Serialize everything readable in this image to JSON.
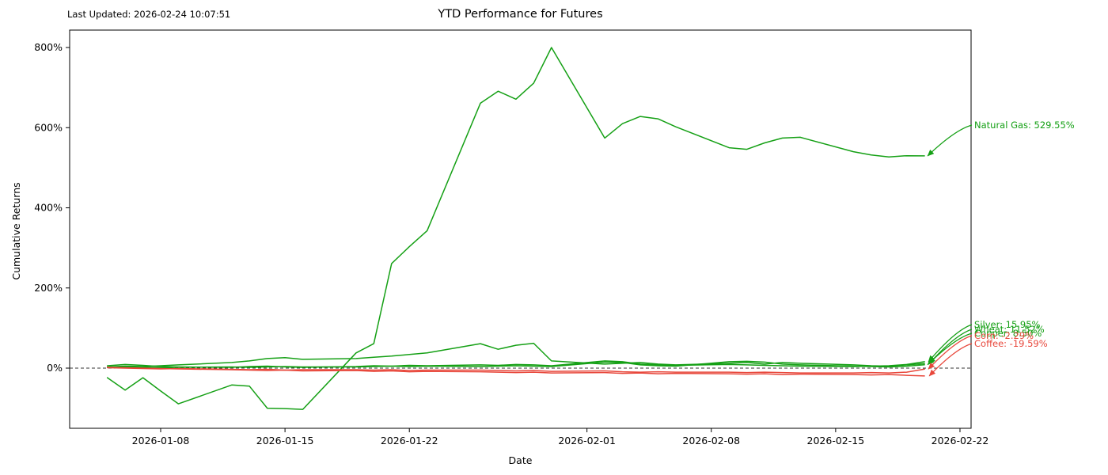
{
  "header": {
    "last_updated": "Last Updated: 2026-02-24 10:07:51"
  },
  "colors": {
    "positive": "#15a015",
    "negative": "#e8473b",
    "axis": "#000000",
    "zero_line": "#333333"
  },
  "chart_data": {
    "type": "line",
    "title": "YTD Performance for Futures",
    "xlabel": "Date",
    "ylabel": "Cumulative Returns",
    "ylim": [
      -150,
      845
    ],
    "grid": false,
    "zero_line_dashed": true,
    "legend_position": "line-end-annotations",
    "yticks": [
      {
        "label": "800%",
        "value": 800
      },
      {
        "label": "600%",
        "value": 600
      },
      {
        "label": "400%",
        "value": 400
      },
      {
        "label": "200%",
        "value": 200
      },
      {
        "label": "0%",
        "value": 0
      }
    ],
    "xticks": [
      "2026-01-08",
      "2026-01-15",
      "2026-01-22",
      "2026-02-01",
      "2026-02-08",
      "2026-02-15",
      "2026-02-22"
    ],
    "x": [
      "2026-01-05",
      "2026-01-06",
      "2026-01-07",
      "2026-01-08",
      "2026-01-09",
      "2026-01-12",
      "2026-01-13",
      "2026-01-14",
      "2026-01-15",
      "2026-01-16",
      "2026-01-19",
      "2026-01-20",
      "2026-01-21",
      "2026-01-22",
      "2026-01-23",
      "2026-01-26",
      "2026-01-27",
      "2026-01-28",
      "2026-01-29",
      "2026-01-30",
      "2026-02-02",
      "2026-02-03",
      "2026-02-04",
      "2026-02-05",
      "2026-02-06",
      "2026-02-09",
      "2026-02-10",
      "2026-02-11",
      "2026-02-12",
      "2026-02-13",
      "2026-02-16",
      "2026-02-17",
      "2026-02-18",
      "2026-02-19",
      "2026-02-20"
    ],
    "series": [
      {
        "name": "Natural Gas",
        "end_label": "Natural Gas: 529.55%",
        "final_return_pct": 529.55,
        "color": "#15a015",
        "values": [
          -24,
          -55,
          -24,
          -57,
          -89,
          -42,
          -45,
          -100,
          -101,
          -103,
          38,
          61,
          261,
          303,
          343,
          661,
          691,
          671,
          711,
          800,
          574,
          610,
          628,
          622,
          602,
          550,
          546,
          562,
          574,
          576,
          540,
          532,
          527,
          530,
          529.55
        ]
      },
      {
        "name": "Silver",
        "end_label": "Silver: 15.95%",
        "final_return_pct": 15.95,
        "color": "#15a015",
        "values": [
          6,
          9,
          7,
          4,
          3,
          2,
          4,
          5,
          3,
          2,
          4,
          6,
          5,
          7,
          6,
          8,
          7,
          9,
          8,
          6,
          18,
          16,
          10,
          8,
          7,
          9,
          8,
          7,
          6,
          5,
          4,
          5,
          6,
          9,
          15.95
        ]
      },
      {
        "name": "Wheat",
        "end_label": "Wheat: 11.52%",
        "final_return_pct": 11.52,
        "color": "#15a015",
        "values": [
          3,
          5,
          4,
          6,
          8,
          14,
          18,
          24,
          26,
          22,
          24,
          27,
          30,
          34,
          38,
          61,
          47,
          57,
          62,
          18,
          10,
          12,
          14,
          10,
          8,
          12,
          14,
          10,
          14,
          12,
          8,
          6,
          5,
          8,
          11.52
        ]
      },
      {
        "name": "Copper",
        "end_label": "Copper: 8.50%",
        "final_return_pct": 8.5,
        "color": "#15a015",
        "values": [
          2,
          3,
          2,
          1,
          2,
          3,
          2,
          3,
          4,
          3,
          3,
          4,
          5,
          4,
          5,
          4,
          5,
          6,
          5,
          4,
          15,
          14,
          8,
          6,
          5,
          16,
          17,
          15,
          10,
          8,
          5,
          4,
          3,
          5,
          8.5
        ]
      },
      {
        "name": "Corn",
        "end_label": "Corn: -2.29%",
        "final_return_pct": -2.29,
        "color": "#e8473b",
        "values": [
          1,
          0,
          -1,
          -2,
          -1,
          -3,
          -4,
          -3,
          -5,
          -4,
          -4,
          -5,
          -4,
          -6,
          -5,
          -5,
          -6,
          -7,
          -6,
          -8,
          -7,
          -9,
          -10,
          -9,
          -10,
          -10,
          -11,
          -10,
          -11,
          -12,
          -12,
          -11,
          -12,
          -10,
          -2.29
        ]
      },
      {
        "name": "Coffee",
        "end_label": "Coffee: -19.59%",
        "final_return_pct": -19.59,
        "color": "#e8473b",
        "values": [
          2,
          1,
          0,
          -1,
          -2,
          -4,
          -5,
          -6,
          -5,
          -7,
          -6,
          -8,
          -7,
          -9,
          -8,
          -9,
          -10,
          -11,
          -10,
          -12,
          -11,
          -13,
          -12,
          -14,
          -13,
          -14,
          -15,
          -14,
          -16,
          -15,
          -16,
          -17,
          -16,
          -18,
          -19.59
        ]
      }
    ]
  }
}
